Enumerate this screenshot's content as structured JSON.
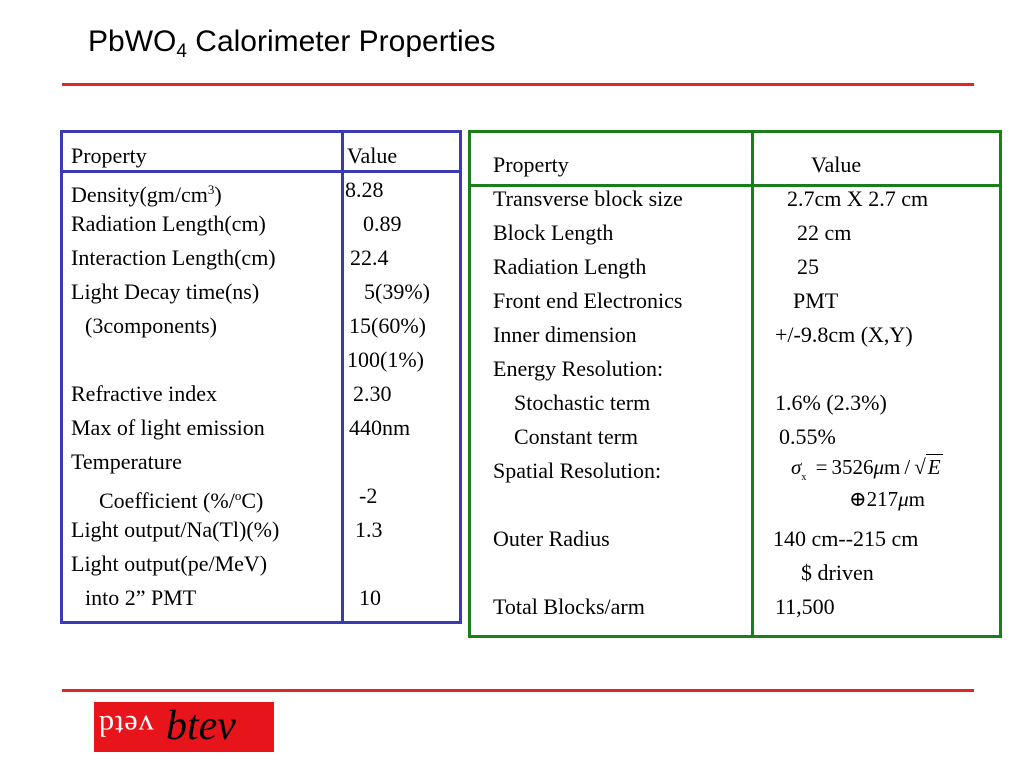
{
  "title": {
    "main": "PbWO",
    "sub": "4",
    "rest": " Calorimeter Properties"
  },
  "left_table": {
    "header": {
      "property": "Property",
      "value": "Value"
    },
    "rows": [
      {
        "property": "Density(gm/cm",
        "property_sup": "3",
        "property_tail": ")",
        "value": "8.28"
      },
      {
        "property": "Radiation Length(cm)",
        "value": "0.89"
      },
      {
        "property": "Interaction Length(cm)",
        "value": "22.4"
      },
      {
        "property": "Light Decay time(ns)",
        "value": "5(39%)"
      },
      {
        "property": "(3components)",
        "value": "15(60%)"
      },
      {
        "property": "",
        "value": "100(1%)"
      },
      {
        "property": "Refractive index",
        "value": "2.30"
      },
      {
        "property": "Max of light emission",
        "value": "440nm"
      },
      {
        "property": "Temperature",
        "value": ""
      },
      {
        "property": "Coefficient (%/",
        "property_sup": "o",
        "property_tail": "C)",
        "value": "-2"
      },
      {
        "property": "Light output/Na(Tl)(%)",
        "value": "1.3"
      },
      {
        "property": "Light output(pe/MeV)",
        "value": ""
      },
      {
        "property": "into 2” PMT",
        "value": "10"
      }
    ]
  },
  "right_table": {
    "header": {
      "property": "Property",
      "value": "Value"
    },
    "rows": [
      {
        "property": "Transverse block size",
        "value": "2.7cm X 2.7 cm"
      },
      {
        "property": "Block Length",
        "value": "22 cm"
      },
      {
        "property": "Radiation Length",
        "value": "25"
      },
      {
        "property": "Front end Electronics",
        "value": "PMT"
      },
      {
        "property": "Inner dimension",
        "value": "+/-9.8cm (X,Y)"
      },
      {
        "property": "Energy Resolution:",
        "value": ""
      },
      {
        "property": "Stochastic term",
        "value": "1.6% (2.3%)"
      },
      {
        "property": "Constant term",
        "value": "0.55%"
      },
      {
        "property": "Spatial Resolution:",
        "value": ""
      },
      {
        "property": "Outer Radius",
        "value": "140 cm--215 cm"
      },
      {
        "property": "",
        "value": "$ driven"
      },
      {
        "property": "Total Blocks/arm",
        "value": "11,500"
      }
    ],
    "spatial_formula": {
      "sigma": "σ",
      "sub": "x",
      "eq": "=",
      "coef": "3526",
      "mu": "μ",
      "m": "m",
      "slash": "/",
      "E": "E",
      "oplus": "⊕",
      "const": "217",
      "mu2": "μ",
      "m2": "m"
    }
  },
  "logo": {
    "mirror_text": "vetd",
    "main_text": "btev"
  },
  "colors": {
    "rule": "#e0242a",
    "blue_border": "#3a3ab5",
    "green_border": "#1a7f1a",
    "logo_bg": "#e8141c"
  }
}
